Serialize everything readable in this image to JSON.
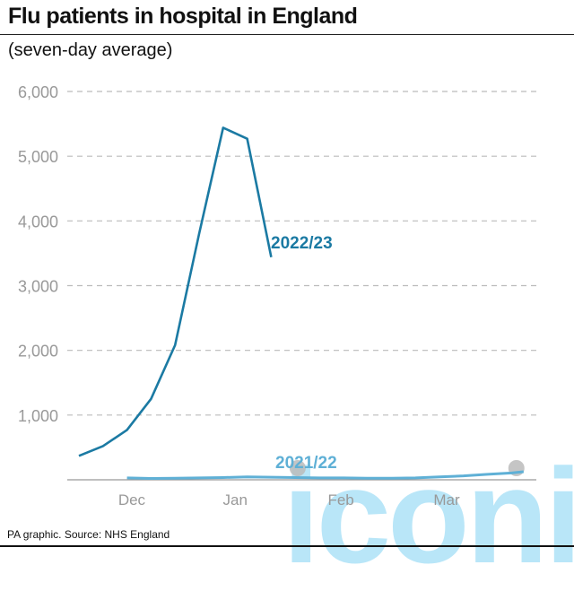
{
  "title": "Flu patients in hospital in England",
  "subtitle": "(seven-day average)",
  "source": "PA graphic. Source: NHS England",
  "watermark": "iconic",
  "colors": {
    "s2223": "#1b7aa3",
    "s2122": "#5fb0d6",
    "grid": "#bbbbbb",
    "tick": "#999999"
  },
  "chart_data": {
    "type": "line",
    "title": "Flu patients in hospital in England",
    "subtitle": "(seven-day average)",
    "xlabel": "",
    "ylabel": "",
    "ylim": [
      0,
      6000
    ],
    "xlim_weeks": [
      0,
      20
    ],
    "yticks": [
      {
        "value": 1000,
        "label": "1,000"
      },
      {
        "value": 2000,
        "label": "2,000"
      },
      {
        "value": 3000,
        "label": "3,000"
      },
      {
        "value": 4000,
        "label": "4,000"
      },
      {
        "value": 5000,
        "label": "5,000"
      },
      {
        "value": 6000,
        "label": "6,000"
      }
    ],
    "xticks": [
      {
        "week": 2.2,
        "label": "Dec"
      },
      {
        "week": 6.5,
        "label": "Jan"
      },
      {
        "week": 10.9,
        "label": "Feb"
      },
      {
        "week": 15.3,
        "label": "Mar"
      }
    ],
    "grid": true,
    "series": [
      {
        "name": "2022/23",
        "color_key": "s2223",
        "x": [
          0,
          1,
          2,
          3,
          4,
          5,
          6,
          7,
          8
        ],
        "y": [
          370,
          520,
          770,
          1250,
          2080,
          3800,
          5440,
          5270,
          3440
        ]
      },
      {
        "name": "2021/22",
        "color_key": "s2122",
        "x": [
          2,
          3,
          4,
          5,
          6,
          7,
          8,
          9,
          10,
          11,
          12,
          13,
          14,
          15,
          16,
          17,
          18,
          18.5
        ],
        "y": [
          30,
          20,
          25,
          30,
          35,
          45,
          40,
          35,
          30,
          30,
          25,
          25,
          30,
          45,
          60,
          85,
          105,
          125
        ]
      }
    ],
    "markers_weeks": [
      9.1,
      18.2
    ]
  }
}
